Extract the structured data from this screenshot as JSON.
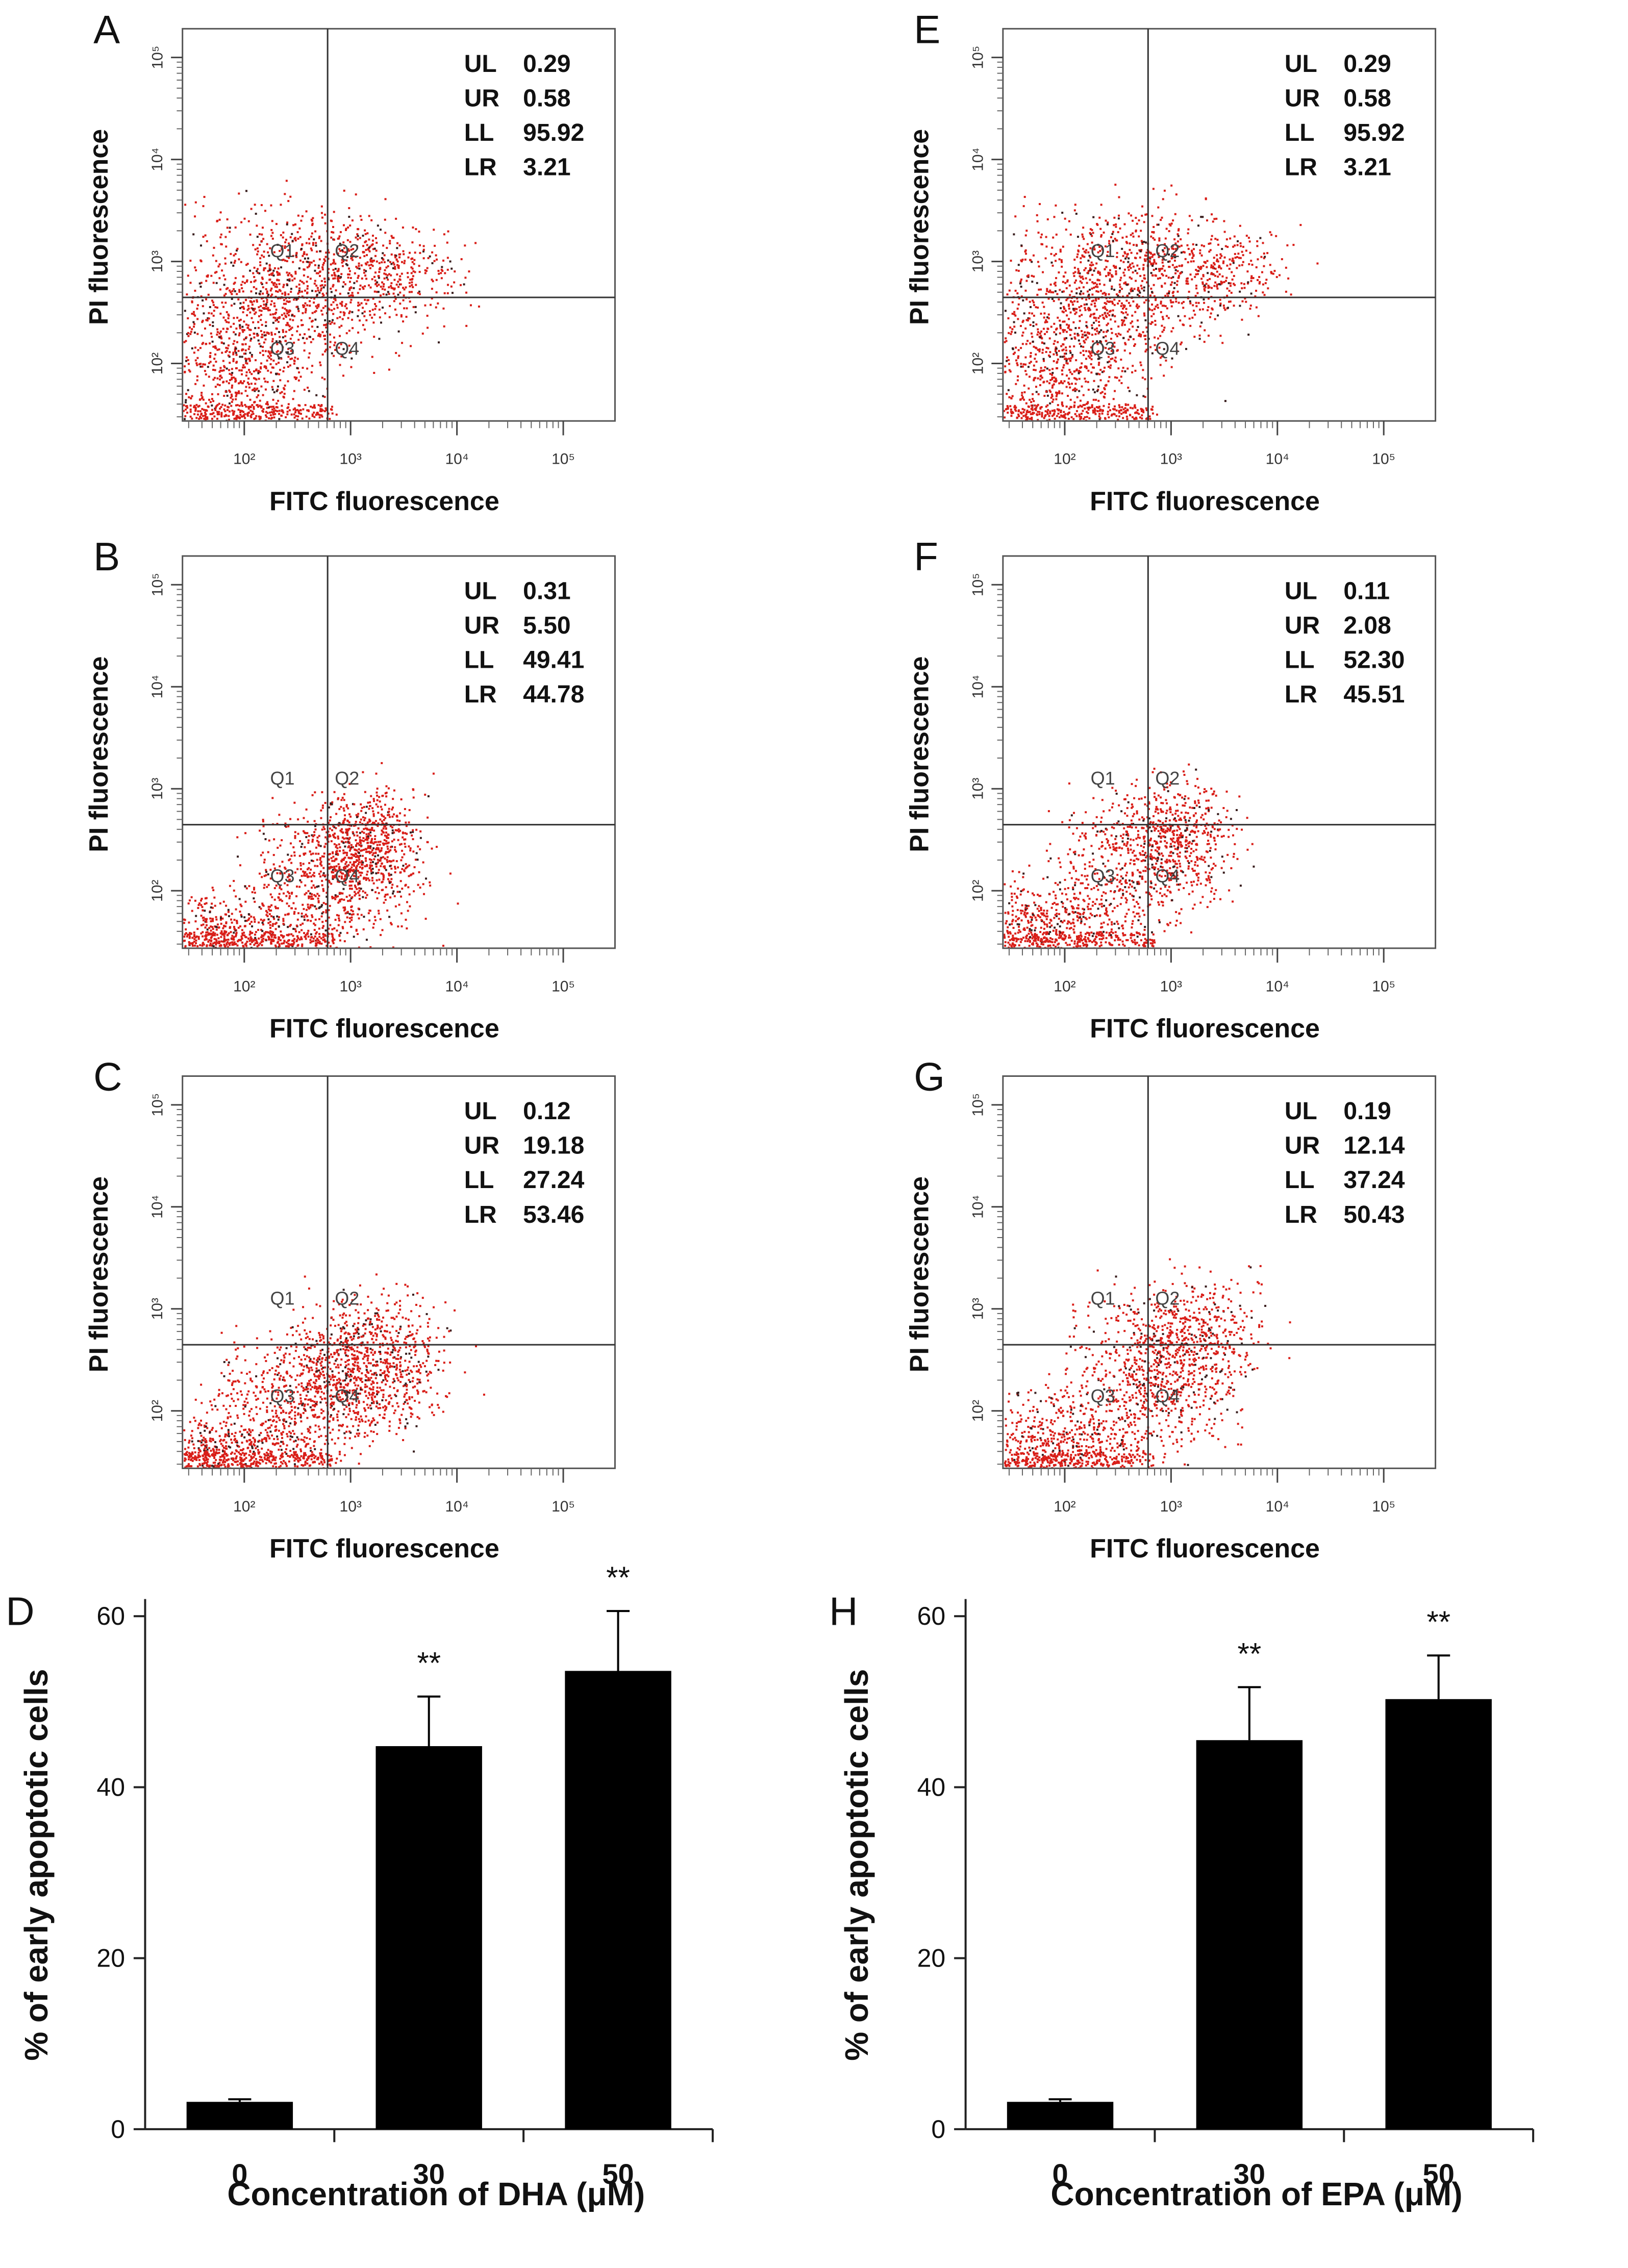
{
  "chart_data": [
    {
      "panel": "A",
      "type": "scatter",
      "xlabel": "FITC fluorescence",
      "ylabel": "PI fluorescence",
      "x_ticks": [
        "10²",
        "10³",
        "10⁴",
        "10⁵"
      ],
      "y_ticks": [
        "10²",
        "10³",
        "10⁴",
        "10⁵"
      ],
      "quadrant_labels": [
        "Q1",
        "Q2",
        "Q3",
        "Q4"
      ],
      "stats": [
        {
          "label": "UL",
          "value": "0.29"
        },
        {
          "label": "UR",
          "value": "0.58"
        },
        {
          "label": "LL",
          "value": "95.92"
        },
        {
          "label": "LR",
          "value": "3.21"
        }
      ]
    },
    {
      "panel": "B",
      "type": "scatter",
      "xlabel": "FITC fluorescence",
      "ylabel": "PI fluorescence",
      "x_ticks": [
        "10²",
        "10³",
        "10⁴",
        "10⁵"
      ],
      "y_ticks": [
        "10²",
        "10³",
        "10⁴",
        "10⁵"
      ],
      "quadrant_labels": [
        "Q1",
        "Q2",
        "Q3",
        "Q4"
      ],
      "stats": [
        {
          "label": "UL",
          "value": "0.31"
        },
        {
          "label": "UR",
          "value": "5.50"
        },
        {
          "label": "LL",
          "value": "49.41"
        },
        {
          "label": "LR",
          "value": "44.78"
        }
      ]
    },
    {
      "panel": "C",
      "type": "scatter",
      "xlabel": "FITC fluorescence",
      "ylabel": "PI fluorescence",
      "x_ticks": [
        "10²",
        "10³",
        "10⁴",
        "10⁵"
      ],
      "y_ticks": [
        "10²",
        "10³",
        "10⁴",
        "10⁵"
      ],
      "quadrant_labels": [
        "Q1",
        "Q2",
        "Q3",
        "Q4"
      ],
      "stats": [
        {
          "label": "UL",
          "value": "0.12"
        },
        {
          "label": "UR",
          "value": "19.18"
        },
        {
          "label": "LL",
          "value": "27.24"
        },
        {
          "label": "LR",
          "value": "53.46"
        }
      ]
    },
    {
      "panel": "E",
      "type": "scatter",
      "xlabel": "FITC fluorescence",
      "ylabel": "PI fluorescence",
      "x_ticks": [
        "10²",
        "10³",
        "10⁴",
        "10⁵"
      ],
      "y_ticks": [
        "10²",
        "10³",
        "10⁴",
        "10⁵"
      ],
      "quadrant_labels": [
        "Q1",
        "Q2",
        "Q3",
        "Q4"
      ],
      "stats": [
        {
          "label": "UL",
          "value": "0.29"
        },
        {
          "label": "UR",
          "value": "0.58"
        },
        {
          "label": "LL",
          "value": "95.92"
        },
        {
          "label": "LR",
          "value": "3.21"
        }
      ]
    },
    {
      "panel": "F",
      "type": "scatter",
      "xlabel": "FITC fluorescence",
      "ylabel": "PI fluorescence",
      "x_ticks": [
        "10²",
        "10³",
        "10⁴",
        "10⁵"
      ],
      "y_ticks": [
        "10²",
        "10³",
        "10⁴",
        "10⁵"
      ],
      "quadrant_labels": [
        "Q1",
        "Q2",
        "Q3",
        "Q4"
      ],
      "stats": [
        {
          "label": "UL",
          "value": "0.11"
        },
        {
          "label": "UR",
          "value": "2.08"
        },
        {
          "label": "LL",
          "value": "52.30"
        },
        {
          "label": "LR",
          "value": "45.51"
        }
      ]
    },
    {
      "panel": "G",
      "type": "scatter",
      "xlabel": "FITC fluorescence",
      "ylabel": "PI fluorescence",
      "x_ticks": [
        "10²",
        "10³",
        "10⁴",
        "10⁵"
      ],
      "y_ticks": [
        "10²",
        "10³",
        "10⁴",
        "10⁵"
      ],
      "quadrant_labels": [
        "Q1",
        "Q2",
        "Q3",
        "Q4"
      ],
      "stats": [
        {
          "label": "UL",
          "value": "0.19"
        },
        {
          "label": "UR",
          "value": "12.14"
        },
        {
          "label": "LL",
          "value": "37.24"
        },
        {
          "label": "LR",
          "value": "50.43"
        }
      ]
    },
    {
      "panel": "D",
      "type": "bar",
      "categories": [
        "0",
        "30",
        "50"
      ],
      "values": [
        3.2,
        44.8,
        53.6
      ],
      "errors": [
        0.3,
        5.8,
        7.0
      ],
      "significance": [
        "",
        "**",
        "**"
      ],
      "xlabel": "Concentration of DHA (μM)",
      "ylabel": "% of early apoptotic cells",
      "yticks": [
        0,
        20,
        40,
        60
      ],
      "ylim": [
        0,
        62
      ]
    },
    {
      "panel": "H",
      "type": "bar",
      "categories": [
        "0",
        "30",
        "50"
      ],
      "values": [
        3.2,
        45.5,
        50.3
      ],
      "errors": [
        0.3,
        6.2,
        5.1
      ],
      "significance": [
        "",
        "**",
        "**"
      ],
      "xlabel": "Concentration of EPA (μM)",
      "ylabel": "% of early apoptotic cells",
      "yticks": [
        0,
        20,
        40,
        60
      ],
      "ylim": [
        0,
        62
      ]
    }
  ]
}
